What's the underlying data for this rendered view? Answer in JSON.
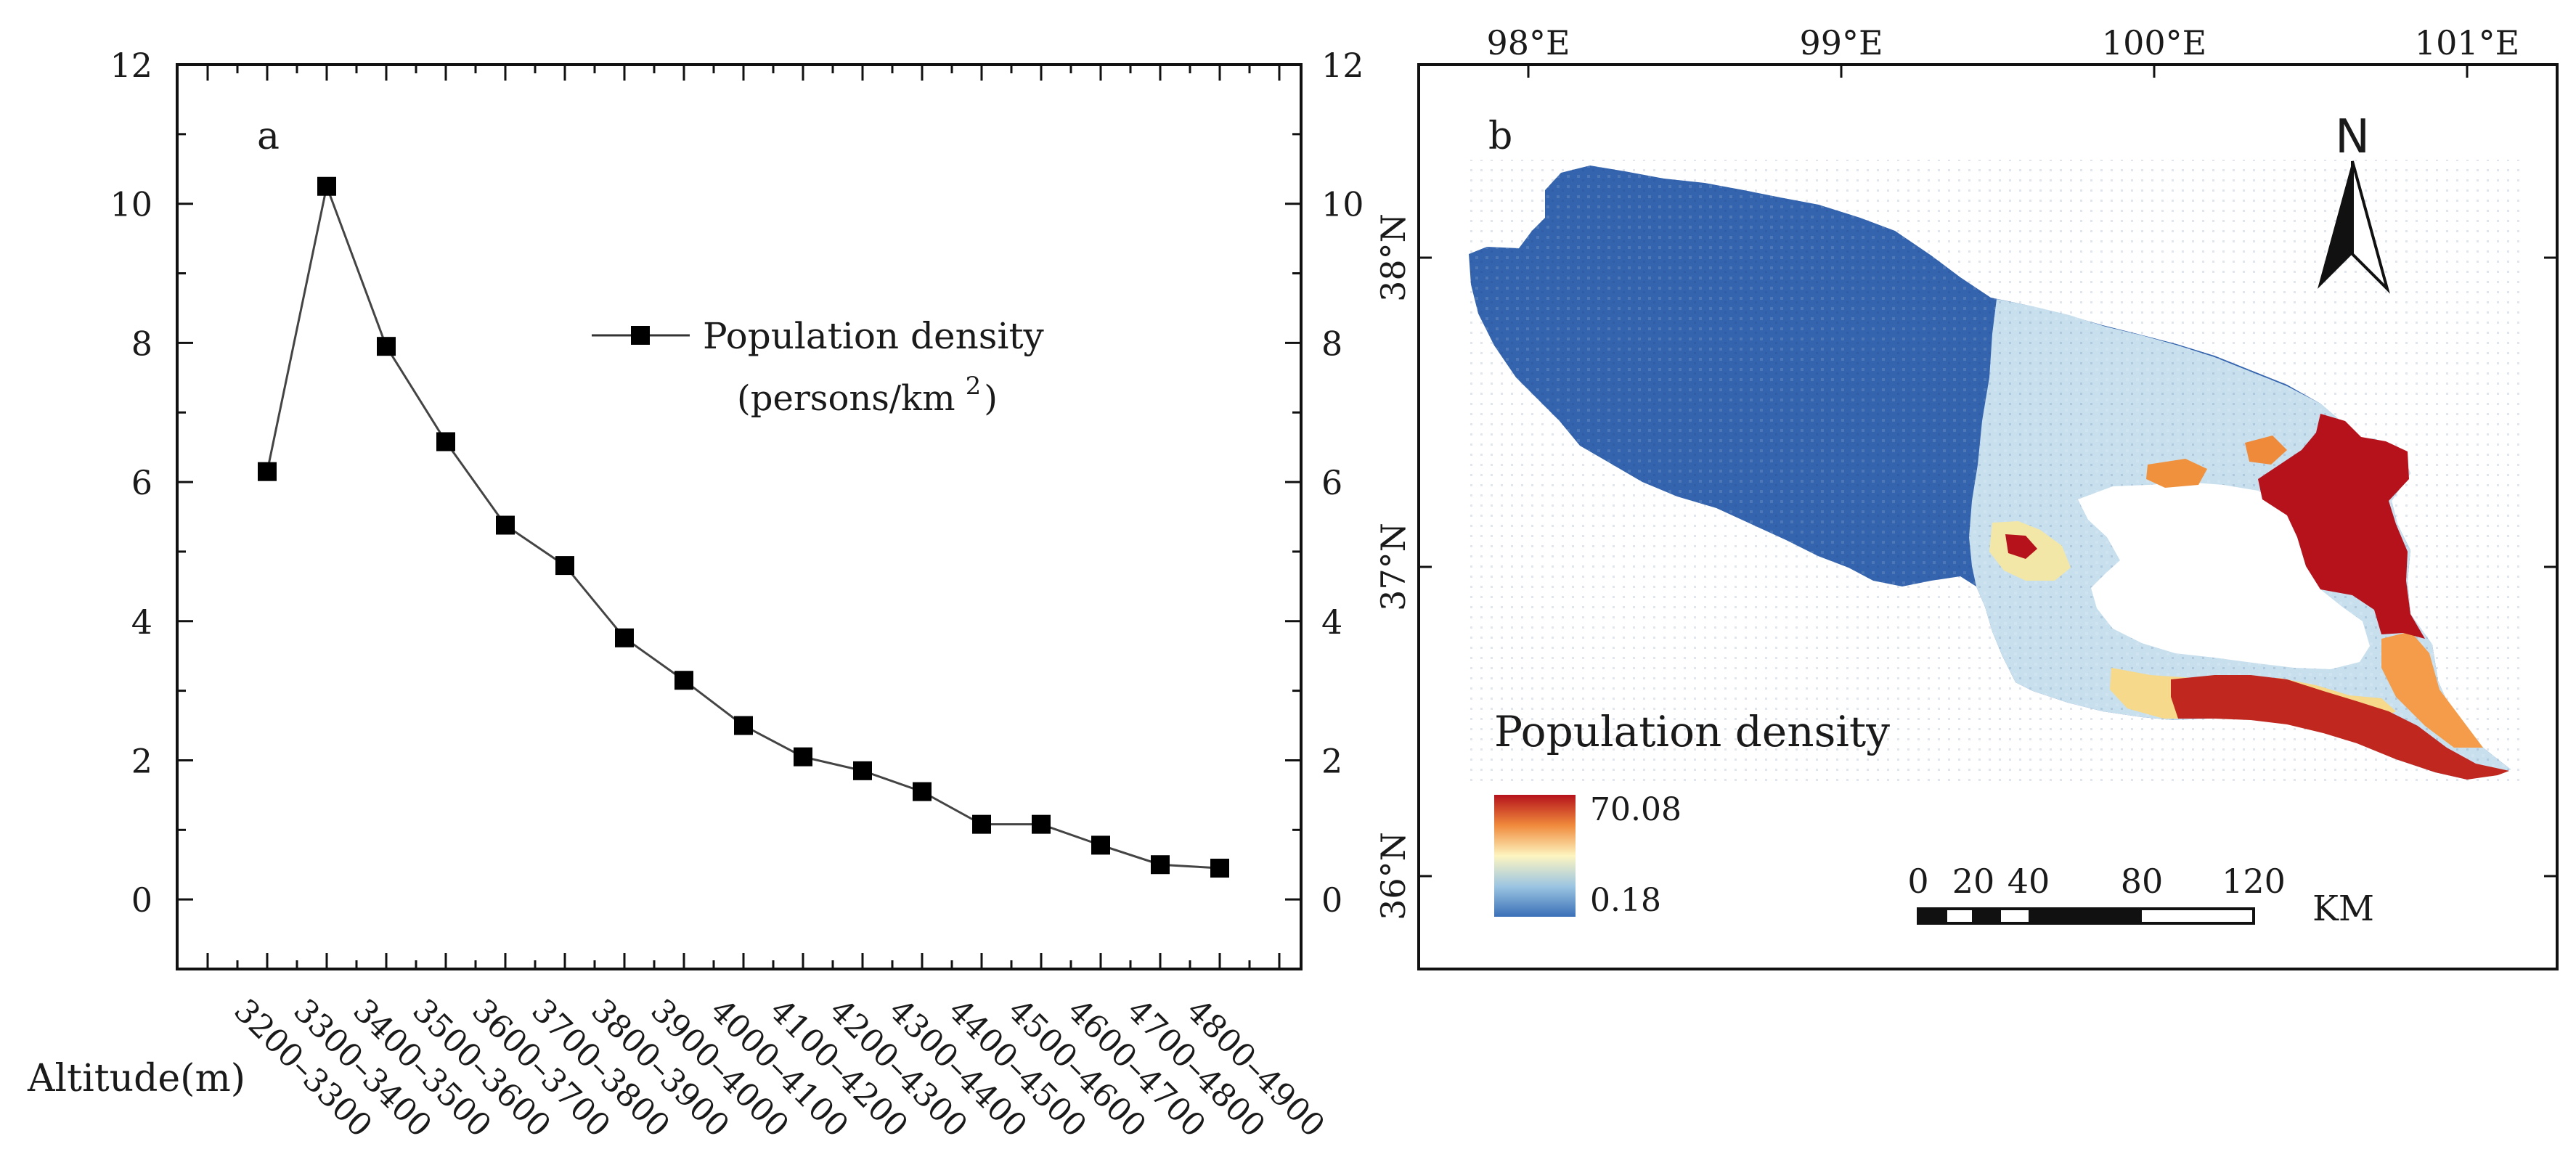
{
  "panel_a": {
    "label": "a",
    "legend": {
      "line1": "Population density",
      "line2": "(persons/km",
      "sup": "2",
      "close": ")"
    },
    "x_axis_title": "Altitude(m)"
  },
  "panel_b": {
    "label": "b",
    "north_label": "N",
    "lon_ticks": [
      "98°E",
      "99°E",
      "100°E",
      "101°E"
    ],
    "lat_ticks": [
      "38°N",
      "37°N",
      "36°N"
    ],
    "legend_title": "Population density",
    "legend_max": "70.08",
    "legend_min": "0.18",
    "scale_labels": [
      "0",
      "20",
      "40",
      "80",
      "120"
    ],
    "scale_unit": "KM",
    "colors": {
      "low": "#3a70b8",
      "mid": "#fdf5c0",
      "high": "#b5121b"
    }
  },
  "chart_data": {
    "type": "line",
    "title": "",
    "xlabel": "Altitude(m)",
    "ylabel": "",
    "categories": [
      "3200–3300",
      "3300–3400",
      "3400–3500",
      "3500–3600",
      "3600–3700",
      "3700–3800",
      "3800–3900",
      "3900–4000",
      "4000–4100",
      "4100–4200",
      "4200–4300",
      "4300–4400",
      "4400–4500",
      "4500–4600",
      "4600–4700",
      "4700–4800",
      "4800–4900"
    ],
    "series": [
      {
        "name": "Population density (persons/km²)",
        "values": [
          6.15,
          10.25,
          7.95,
          6.58,
          5.38,
          4.8,
          3.76,
          3.15,
          2.5,
          2.05,
          1.85,
          1.55,
          1.08,
          1.08,
          0.78,
          0.5,
          0.45
        ]
      }
    ],
    "ylim": [
      -1,
      12
    ],
    "yticks": [
      0,
      2,
      4,
      6,
      8,
      10,
      12
    ],
    "y_tick_labels": [
      "0",
      "2",
      "4",
      "6",
      "8",
      "10",
      "12"
    ],
    "marker": "square",
    "legend_position": "upper-middle"
  }
}
